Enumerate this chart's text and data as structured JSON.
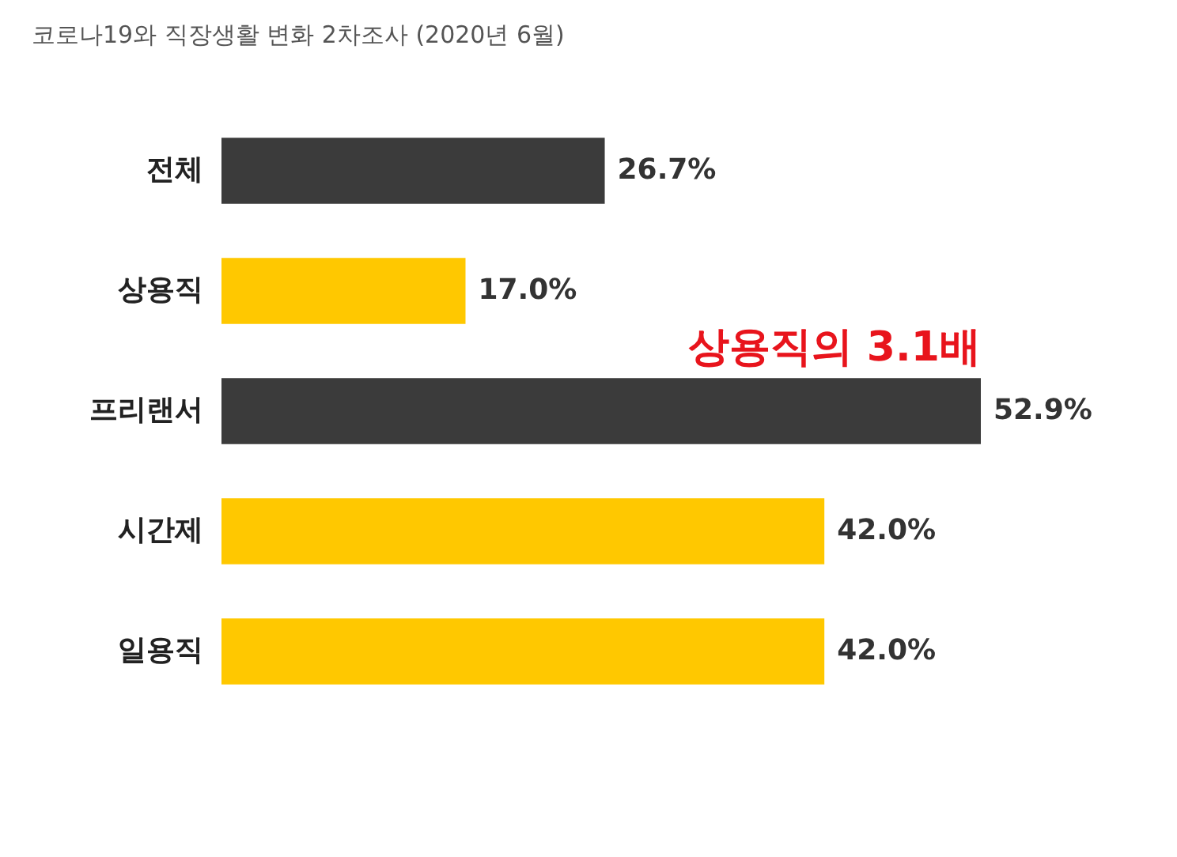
{
  "chart_data": {
    "type": "bar",
    "orientation": "horizontal",
    "title": "코로나19와 직장생활 변화 2차조사 (2020년 6월)",
    "categories": [
      "전체",
      "상용직",
      "프리랜서",
      "시간제",
      "일용직"
    ],
    "values": [
      26.7,
      17.0,
      52.9,
      42.0,
      42.0
    ],
    "colors": [
      "#3b3b3b",
      "#ffc800",
      "#3b3b3b",
      "#ffc800",
      "#ffc800"
    ],
    "value_labels": [
      "26.7%",
      "17.0%",
      "52.9%",
      "42.0%",
      "42.0%"
    ],
    "annotations": [
      "상용직의 3.1배"
    ],
    "tick_labels": "y"
  }
}
